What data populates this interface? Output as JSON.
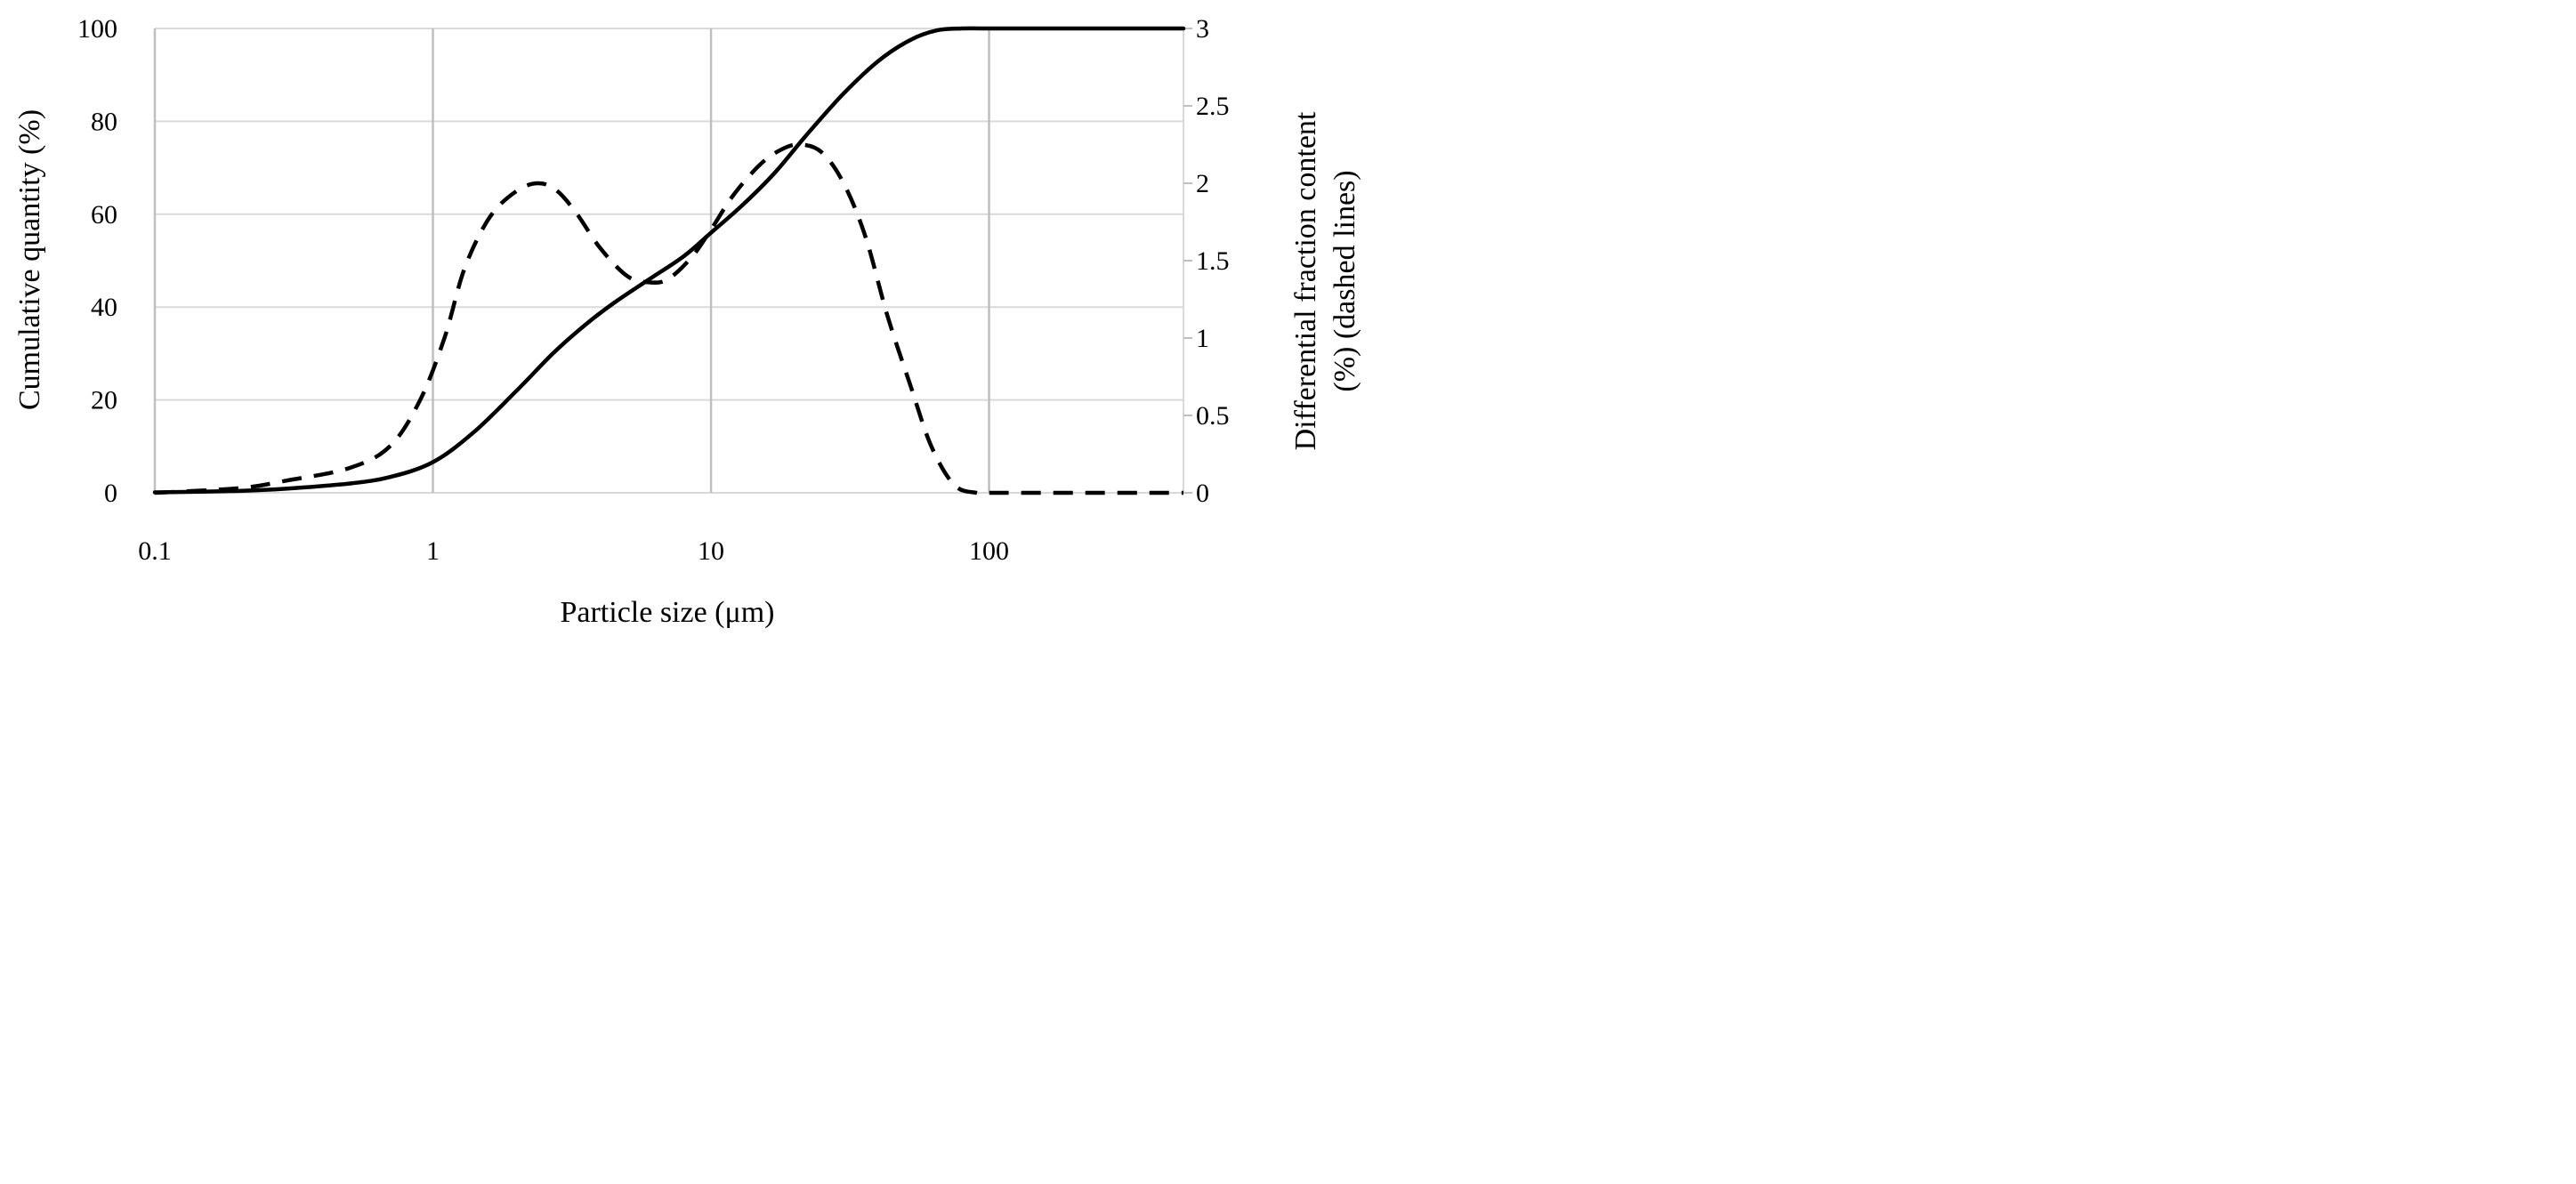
{
  "chart_data": {
    "type": "line",
    "title": "",
    "xlabel": "Particle size (μm)",
    "ylabel": "Cumulative quantity (%)",
    "y2label_line1": "Differential fraction content",
    "y2label_line2": "(%) (dashed lines)",
    "xscale": "log",
    "xlim": [
      0.1,
      500
    ],
    "ylim": [
      0,
      100
    ],
    "y2lim": [
      0,
      3
    ],
    "grid": true,
    "x_ticks": [
      {
        "value": 0.1,
        "label": "0.1"
      },
      {
        "value": 1,
        "label": "1"
      },
      {
        "value": 10,
        "label": "10"
      },
      {
        "value": 100,
        "label": "100"
      }
    ],
    "y_ticks": [
      {
        "value": 0,
        "label": "0"
      },
      {
        "value": 20,
        "label": "20"
      },
      {
        "value": 40,
        "label": "40"
      },
      {
        "value": 60,
        "label": "60"
      },
      {
        "value": 80,
        "label": "80"
      },
      {
        "value": 100,
        "label": "100"
      }
    ],
    "y2_ticks": [
      {
        "value": 0,
        "label": "0"
      },
      {
        "value": 0.5,
        "label": "0.5"
      },
      {
        "value": 1,
        "label": "1"
      },
      {
        "value": 1.5,
        "label": "1.5"
      },
      {
        "value": 2,
        "label": "2"
      },
      {
        "value": 2.5,
        "label": "2.5"
      },
      {
        "value": 3,
        "label": "3"
      }
    ],
    "series": [
      {
        "name": "Cumulative quantity",
        "axis": "left",
        "style": "solid",
        "x": [
          0.1,
          0.2,
          0.3,
          0.5,
          0.7,
          1.0,
          1.4,
          2.0,
          2.7,
          3.5,
          4.5,
          6.0,
          8.0,
          10,
          13,
          17,
          22,
          30,
          40,
          52,
          65,
          80,
          100,
          200,
          500
        ],
        "y": [
          0.1,
          0.4,
          0.9,
          2.0,
          3.4,
          6.6,
          13,
          22,
          30,
          36,
          41,
          46,
          51,
          56,
          62,
          69,
          77,
          86,
          93,
          97.5,
          99.6,
          100,
          100,
          100,
          100
        ]
      },
      {
        "name": "Differential fraction content",
        "axis": "right",
        "style": "dashed",
        "x": [
          0.1,
          0.2,
          0.3,
          0.5,
          0.7,
          0.9,
          1.1,
          1.3,
          1.6,
          2.0,
          2.4,
          2.8,
          3.3,
          4.0,
          5.0,
          6.0,
          7.0,
          8.5,
          10,
          12,
          15,
          18,
          21,
          25,
          30,
          36,
          43,
          52,
          62,
          75,
          90,
          100,
          200,
          500
        ],
        "y": [
          0.0,
          0.03,
          0.08,
          0.16,
          0.3,
          0.6,
          1.0,
          1.45,
          1.78,
          1.95,
          2.0,
          1.95,
          1.8,
          1.58,
          1.4,
          1.36,
          1.38,
          1.52,
          1.7,
          1.92,
          2.12,
          2.22,
          2.25,
          2.2,
          2.0,
          1.65,
          1.15,
          0.7,
          0.3,
          0.05,
          0.0,
          0.0,
          0.0,
          0.0
        ]
      }
    ]
  }
}
